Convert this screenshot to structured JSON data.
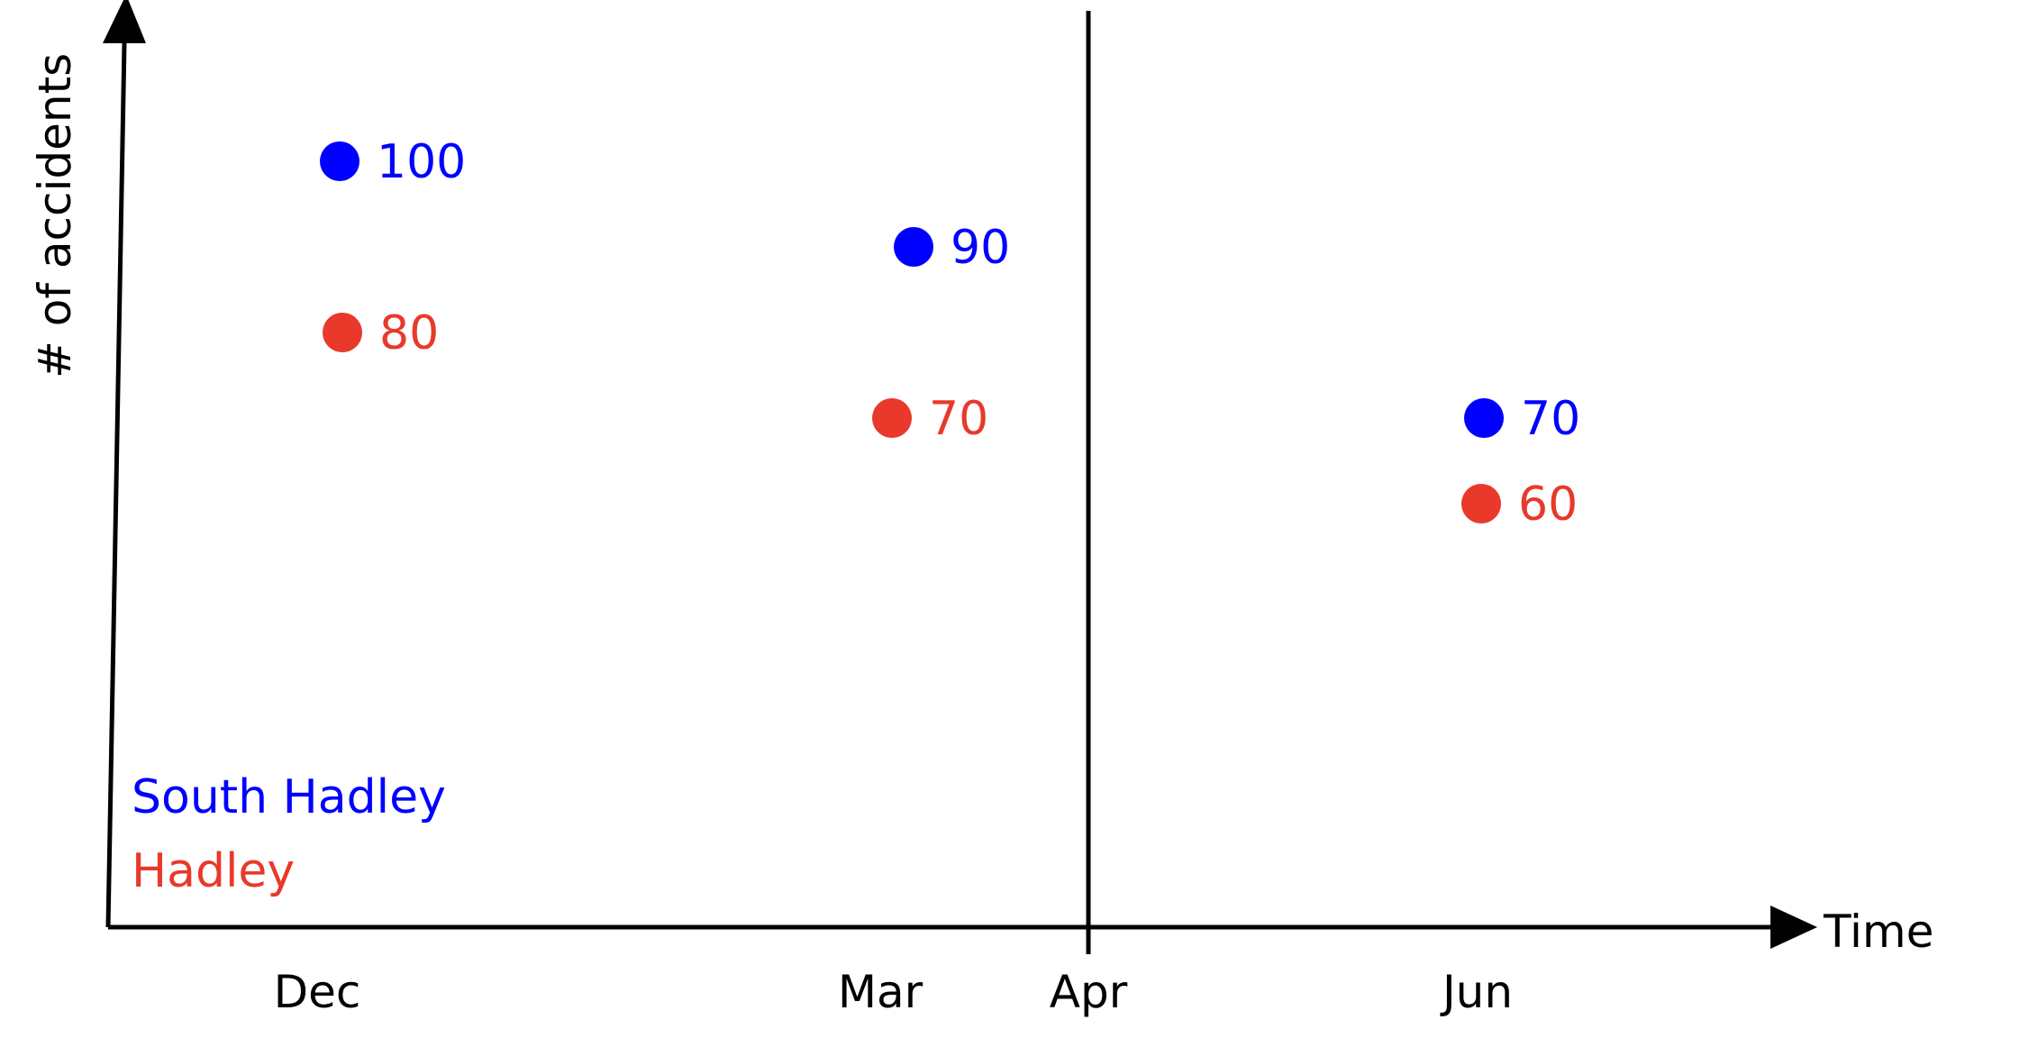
{
  "chart_data": {
    "type": "scatter",
    "title": "",
    "xlabel": "Time",
    "ylabel": "# of accidents",
    "categories": [
      "Dec",
      "Mar",
      "Apr",
      "Jun"
    ],
    "reference_line": {
      "x": "Apr"
    },
    "grid": false,
    "legend_placement": "bottom-left",
    "series": [
      {
        "name": "South Hadley",
        "color": "#0000ff",
        "points": [
          {
            "x": "Dec",
            "y": 100,
            "label": "100"
          },
          {
            "x": "Mar",
            "y": 90,
            "label": "90"
          },
          {
            "x": "Jun",
            "y": 70,
            "label": "70"
          }
        ]
      },
      {
        "name": "Hadley",
        "color": "#e8392b",
        "points": [
          {
            "x": "Dec",
            "y": 80,
            "label": "80"
          },
          {
            "x": "Mar",
            "y": 70,
            "label": "70"
          },
          {
            "x": "Jun",
            "y": 60,
            "label": "60"
          }
        ]
      }
    ]
  }
}
